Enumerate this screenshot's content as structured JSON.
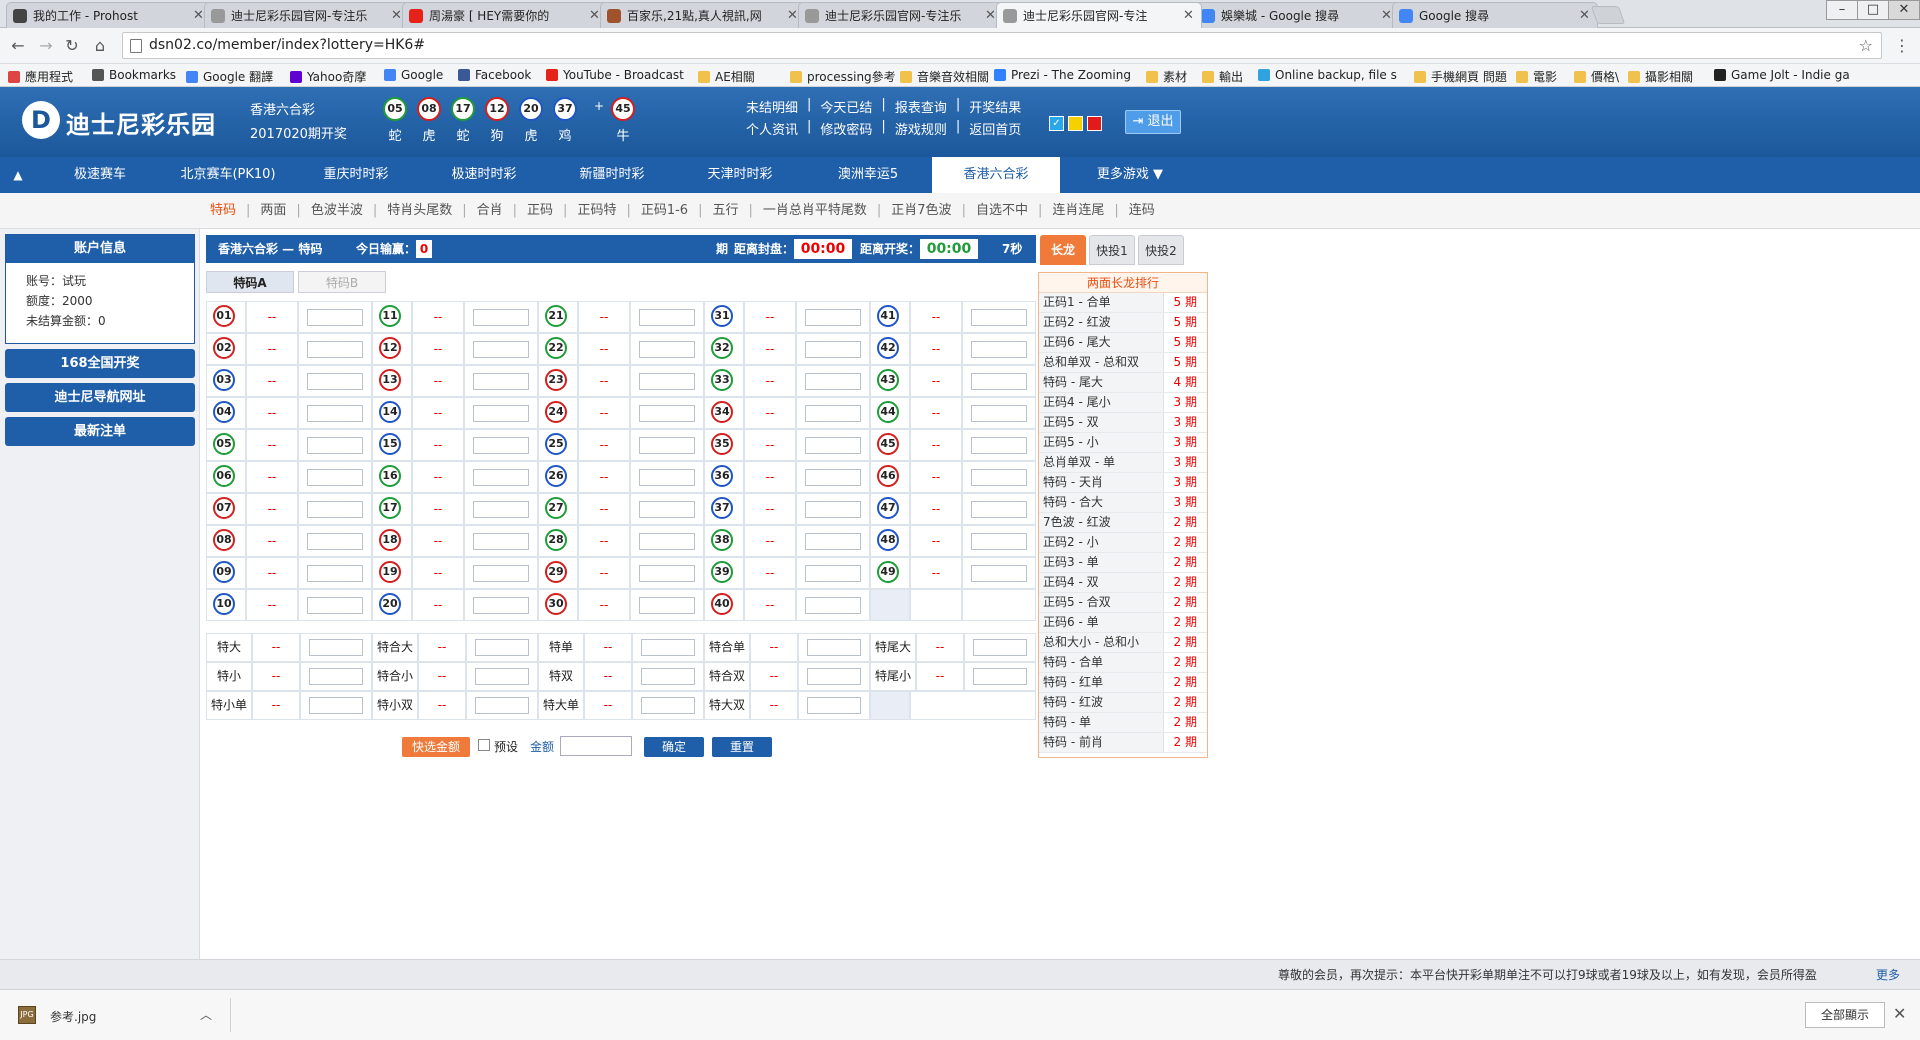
{
  "browser": {
    "tabs": [
      {
        "title": "我的工作 - Prohost",
        "color": "#444444"
      },
      {
        "title": "迪士尼彩乐园官网-专注乐",
        "color": "#999999"
      },
      {
        "title": "周湯豪 [ HEY需要你的",
        "color": "#e62117"
      },
      {
        "title": "百家乐,21點,真人視訊,网",
        "color": "#a0522d"
      },
      {
        "title": "迪士尼彩乐园官网-专注乐",
        "color": "#999999"
      },
      {
        "title": "迪士尼彩乐园官网-专注",
        "color": "#999999"
      },
      {
        "title": "娛樂城 - Google 搜尋",
        "color": "#4285f4"
      },
      {
        "title": "Google 搜尋",
        "color": "#4285f4"
      }
    ],
    "url": "dsn02.co/member/index?lottery=HK6#",
    "bookmarks": [
      {
        "label": "應用程式",
        "color": "#d44"
      },
      {
        "label": "Bookmarks",
        "color": "#555"
      },
      {
        "label": "Google 翻譯",
        "color": "#4285f4"
      },
      {
        "label": "Yahoo奇摩",
        "color": "#5f01d1"
      },
      {
        "label": "Google",
        "color": "#4285f4"
      },
      {
        "label": "Facebook",
        "color": "#3b5998"
      },
      {
        "label": "YouTube - Broadcast",
        "color": "#e62117"
      },
      {
        "label": "AE相關",
        "color": "#f0c14b"
      },
      {
        "label": "processing參考",
        "color": "#f0c14b"
      },
      {
        "label": "音樂音效相關",
        "color": "#f0c14b"
      },
      {
        "label": "Prezi - The Zooming",
        "color": "#3181ff"
      },
      {
        "label": "素材",
        "color": "#f0c14b"
      },
      {
        "label": "輸出",
        "color": "#f0c14b"
      },
      {
        "label": "Online backup, file s",
        "color": "#2fa3e0"
      },
      {
        "label": "手機網頁 問題",
        "color": "#f0c14b"
      },
      {
        "label": "電影",
        "color": "#f0c14b"
      },
      {
        "label": "價格\\",
        "color": "#f0c14b"
      },
      {
        "label": "攝影相關",
        "color": "#f0c14b"
      },
      {
        "label": "Game Jolt - Indie ga",
        "color": "#222"
      }
    ]
  },
  "header": {
    "logo_letter": "D",
    "logo_text": "迪士尼彩乐园",
    "lottery_name": "香港六合彩",
    "draw_issue": "2017020期开奖",
    "balls": [
      {
        "num": "05",
        "zodiac": "蛇",
        "color": "green"
      },
      {
        "num": "08",
        "zodiac": "虎",
        "color": "red"
      },
      {
        "num": "17",
        "zodiac": "蛇",
        "color": "green"
      },
      {
        "num": "12",
        "zodiac": "狗",
        "color": "red"
      },
      {
        "num": "20",
        "zodiac": "虎",
        "color": "blue"
      },
      {
        "num": "37",
        "zodiac": "鸡",
        "color": "blue"
      },
      {
        "num": "45",
        "zodiac": "牛",
        "color": "red"
      }
    ],
    "plus": "+",
    "links_row1": [
      "未结明细",
      "今天已结",
      "报表查询",
      "开奖结果"
    ],
    "links_row2": [
      "个人资讯",
      "修改密码",
      "游戏规则",
      "返回首页"
    ],
    "theme_colors": [
      "#2aa7e8",
      "#f5d100",
      "#e31a1a"
    ],
    "logout_label": "退出"
  },
  "game_nav": {
    "toggle": "▲",
    "items": [
      "极速赛车",
      "北京赛车(PK10)",
      "重庆时时彩",
      "极速时时彩",
      "新疆时时彩",
      "天津时时彩",
      "澳洲幸运5",
      "香港六合彩",
      "更多游戏  ▼"
    ],
    "active_index": 7
  },
  "sub_nav": {
    "items": [
      "特码",
      "两面",
      "色波半波",
      "特肖头尾数",
      "合肖",
      "正码",
      "正码特",
      "正码1-6",
      "五行",
      "一肖总肖平特尾数",
      "正肖7色波",
      "自选不中",
      "连肖连尾",
      "连码"
    ],
    "active_index": 0
  },
  "sidebar": {
    "account_title": "账户信息",
    "account_lines": [
      "账号：试玩",
      "额度：2000",
      "未结算金额：0"
    ],
    "buttons": [
      "168全国开奖",
      "迪士尼导航网址",
      "最新注单"
    ]
  },
  "main": {
    "title": "香港六合彩 — 特码",
    "today_win_label": "今日输赢：",
    "today_win_value": "0",
    "period_label": "期",
    "close_label": "距离封盘：",
    "close_time": "00:00",
    "draw_label": "距离开奖：",
    "draw_time": "00:00",
    "seconds": "7秒",
    "tabs": [
      "特码A",
      "特码B"
    ],
    "odds_placeholder": "--",
    "options": [
      [
        "特大",
        "特合大",
        "特单",
        "特合单",
        "特尾大"
      ],
      [
        "特小",
        "特合小",
        "特双",
        "特合双",
        "特尾小"
      ],
      [
        "特小单",
        "特小双",
        "特大单",
        "特大双",
        ""
      ]
    ]
  },
  "controls": {
    "quick_amount": "快选金额",
    "preset": "预设",
    "amount_label": "金额",
    "confirm": "确定",
    "reset": "重置"
  },
  "right_panel": {
    "tabs": [
      "长龙",
      "快投1",
      "快投2"
    ],
    "heading": "两面长龙排行",
    "rows": [
      {
        "name": "正码1 - 合单",
        "val": "5 期"
      },
      {
        "name": "正码2 - 红波",
        "val": "5 期"
      },
      {
        "name": "正码6 - 尾大",
        "val": "5 期"
      },
      {
        "name": "总和单双 - 总和双",
        "val": "5 期"
      },
      {
        "name": "特码 - 尾大",
        "val": "4 期"
      },
      {
        "name": "正码4 - 尾小",
        "val": "3 期"
      },
      {
        "name": "正码5 - 双",
        "val": "3 期"
      },
      {
        "name": "正码5 - 小",
        "val": "3 期"
      },
      {
        "name": "总肖单双 - 单",
        "val": "3 期"
      },
      {
        "name": "特码 - 天肖",
        "val": "3 期"
      },
      {
        "name": "特码 - 合大",
        "val": "3 期"
      },
      {
        "name": "7色波 - 红波",
        "val": "2 期"
      },
      {
        "name": "正码2 - 小",
        "val": "2 期"
      },
      {
        "name": "正码3 - 单",
        "val": "2 期"
      },
      {
        "name": "正码4 - 双",
        "val": "2 期"
      },
      {
        "name": "正码5 - 合双",
        "val": "2 期"
      },
      {
        "name": "正码6 - 单",
        "val": "2 期"
      },
      {
        "name": "总和大小 - 总和小",
        "val": "2 期"
      },
      {
        "name": "特码 - 合单",
        "val": "2 期"
      },
      {
        "name": "特码 - 红单",
        "val": "2 期"
      },
      {
        "name": "特码 - 红波",
        "val": "2 期"
      },
      {
        "name": "特码 - 单",
        "val": "2 期"
      },
      {
        "name": "特码 - 前肖",
        "val": "2 期"
      }
    ]
  },
  "footer": {
    "marquee": "尊敬的会员，再次提示：本平台快开彩单期单注不可以打9球或者19球及以上，如有发现，会员所得盈",
    "more": "更多"
  },
  "download": {
    "file_name": "参考.jpg",
    "show_all": "全部顯示"
  }
}
